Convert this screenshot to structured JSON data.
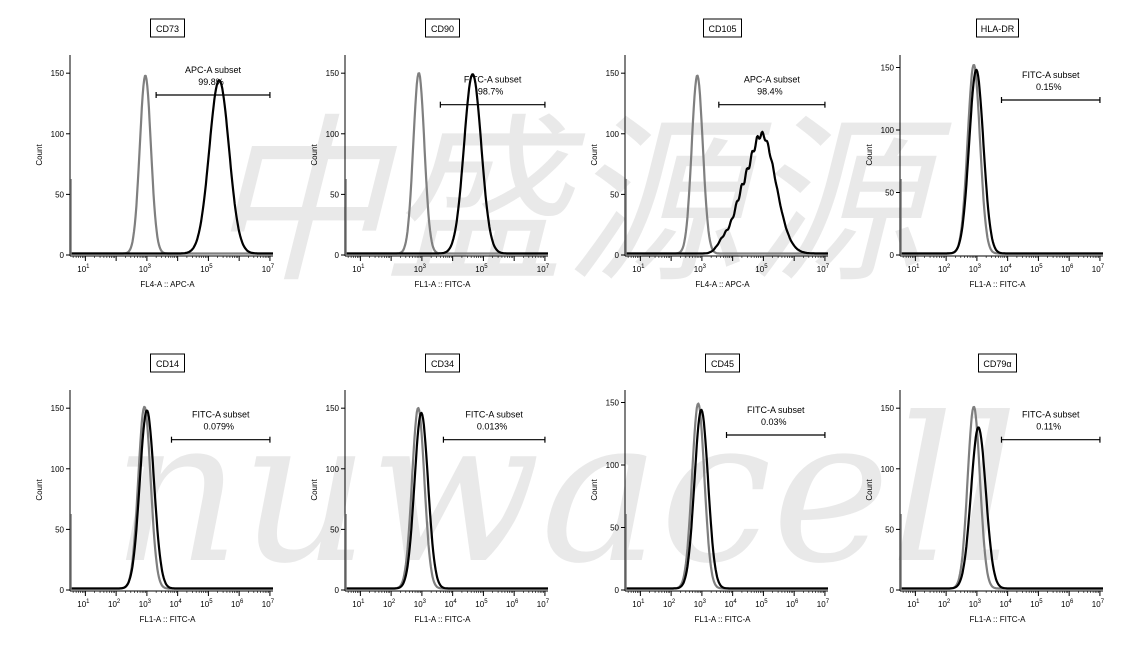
{
  "watermark": {
    "lines": [
      "中盛源源",
      "nuwacell"
    ],
    "color": "#d7d7d7"
  },
  "colors": {
    "control": "#7f7f7f",
    "sample": "#000000"
  },
  "chart_data": [
    {
      "type": "line",
      "title": "CD73",
      "xlabel": "FL4-A :: APC-A",
      "ylabel": "Count",
      "x_scale": "log",
      "x_ticks": [
        1,
        3,
        5,
        7
      ],
      "y_ticks": [
        0,
        50,
        100,
        150
      ],
      "ylim": [
        0,
        165
      ],
      "gate": {
        "label": "APC-A subset",
        "percent": "99.8%",
        "x_start": 3.3,
        "x_end": 7.0,
        "y": 132
      },
      "series": [
        {
          "role": "control",
          "peak_log": 2.95,
          "width": 0.18,
          "height": 147
        },
        {
          "role": "sample",
          "peak_log": 5.35,
          "width": 0.32,
          "height": 143
        }
      ]
    },
    {
      "type": "line",
      "title": "CD90",
      "xlabel": "FL1-A :: FITC-A",
      "ylabel": "Count",
      "x_scale": "log",
      "x_ticks": [
        1,
        3,
        5,
        7
      ],
      "y_ticks": [
        0,
        50,
        100,
        150
      ],
      "ylim": [
        0,
        165
      ],
      "gate": {
        "label": "FITC-A subset",
        "percent": "98.7%",
        "x_start": 3.6,
        "x_end": 7.0,
        "y": 124
      },
      "series": [
        {
          "role": "control",
          "peak_log": 2.9,
          "width": 0.18,
          "height": 149
        },
        {
          "role": "sample",
          "peak_log": 4.65,
          "width": 0.28,
          "height": 148
        }
      ]
    },
    {
      "type": "line",
      "title": "CD105",
      "xlabel": "FL4-A :: APC-A",
      "ylabel": "Count",
      "x_scale": "log",
      "x_ticks": [
        1,
        3,
        5,
        7
      ],
      "y_ticks": [
        0,
        50,
        100,
        150
      ],
      "ylim": [
        0,
        165
      ],
      "gate": {
        "label": "APC-A subset",
        "percent": "98.4%",
        "x_start": 3.55,
        "x_end": 7.0,
        "y": 124
      },
      "series": [
        {
          "role": "control",
          "peak_log": 2.85,
          "width": 0.18,
          "height": 147
        },
        {
          "role": "sample",
          "peak_log": 4.95,
          "width": 0.45,
          "height": 98
        }
      ]
    },
    {
      "type": "line",
      "title": "HLA-DR",
      "xlabel": "FL1-A :: FITC-A",
      "ylabel": "Count",
      "x_scale": "log",
      "x_ticks": [
        1,
        2,
        3,
        4,
        5,
        6,
        7
      ],
      "y_ticks": [
        0,
        50,
        100,
        150
      ],
      "ylim": [
        0,
        160
      ],
      "gate": {
        "label": "FITC-A subset",
        "percent": "0.15%",
        "x_start": 3.8,
        "x_end": 7.0,
        "y": 124
      },
      "series": [
        {
          "role": "control",
          "peak_log": 2.9,
          "width": 0.2,
          "height": 151
        },
        {
          "role": "sample",
          "peak_log": 2.98,
          "width": 0.23,
          "height": 147
        }
      ]
    },
    {
      "type": "line",
      "title": "CD14",
      "xlabel": "FL1-A :: FITC-A",
      "ylabel": "Count",
      "x_scale": "log",
      "x_ticks": [
        1,
        2,
        3,
        4,
        5,
        6,
        7
      ],
      "y_ticks": [
        0,
        50,
        100,
        150
      ],
      "ylim": [
        0,
        165
      ],
      "gate": {
        "label": "FITC-A subset",
        "percent": "0.079%",
        "x_start": 3.8,
        "x_end": 7.0,
        "y": 124
      },
      "series": [
        {
          "role": "control",
          "peak_log": 2.92,
          "width": 0.2,
          "height": 150
        },
        {
          "role": "sample",
          "peak_log": 3.0,
          "width": 0.23,
          "height": 147
        }
      ]
    },
    {
      "type": "line",
      "title": "CD34",
      "xlabel": "FL1-A :: FITC-A",
      "ylabel": "Count",
      "x_scale": "log",
      "x_ticks": [
        1,
        2,
        3,
        4,
        5,
        6,
        7
      ],
      "y_ticks": [
        0,
        50,
        100,
        150
      ],
      "ylim": [
        0,
        165
      ],
      "gate": {
        "label": "FITC-A subset",
        "percent": "0.013%",
        "x_start": 3.7,
        "x_end": 7.0,
        "y": 124
      },
      "series": [
        {
          "role": "control",
          "peak_log": 2.88,
          "width": 0.2,
          "height": 149
        },
        {
          "role": "sample",
          "peak_log": 2.98,
          "width": 0.22,
          "height": 145
        }
      ]
    },
    {
      "type": "line",
      "title": "CD45",
      "xlabel": "FL1-A :: FITC-A",
      "ylabel": "Count",
      "x_scale": "log",
      "x_ticks": [
        1,
        2,
        3,
        4,
        5,
        6,
        7
      ],
      "y_ticks": [
        0,
        50,
        100,
        150
      ],
      "ylim": [
        0,
        160
      ],
      "gate": {
        "label": "FITC-A subset",
        "percent": "0.03%",
        "x_start": 3.8,
        "x_end": 7.0,
        "y": 124
      },
      "series": [
        {
          "role": "control",
          "peak_log": 2.88,
          "width": 0.2,
          "height": 148
        },
        {
          "role": "sample",
          "peak_log": 2.98,
          "width": 0.22,
          "height": 143
        }
      ]
    },
    {
      "type": "line",
      "title": "CD79α",
      "xlabel": "FL1-A :: FITC-A",
      "ylabel": "Count",
      "x_scale": "log",
      "x_ticks": [
        1,
        2,
        3,
        4,
        5,
        6,
        7
      ],
      "y_ticks": [
        0,
        50,
        100,
        150
      ],
      "ylim": [
        0,
        165
      ],
      "gate": {
        "label": "FITC-A subset",
        "percent": "0.11%",
        "x_start": 3.8,
        "x_end": 7.0,
        "y": 124
      },
      "series": [
        {
          "role": "control",
          "peak_log": 2.9,
          "width": 0.2,
          "height": 150
        },
        {
          "role": "sample",
          "peak_log": 3.05,
          "width": 0.24,
          "height": 133
        }
      ]
    }
  ]
}
